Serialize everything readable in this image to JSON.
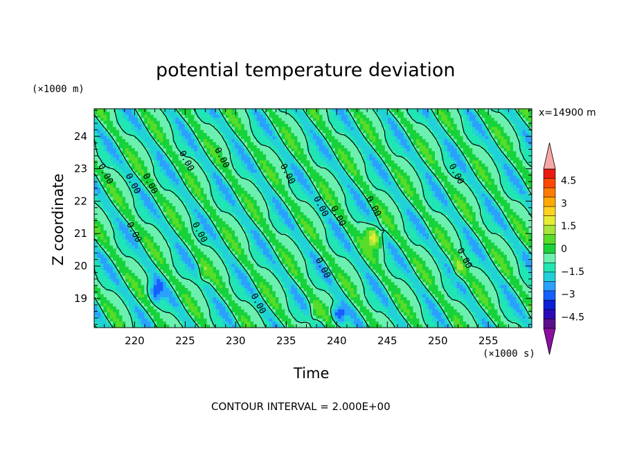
{
  "chart_data": {
    "type": "heatmap",
    "title": "potential temperature deviation",
    "xlabel": "Time",
    "ylabel": "Z coordinate",
    "x_unit": "(×1000 s)",
    "y_unit": "(×1000 m)",
    "location_label": "x=14900 m",
    "footer": "CONTOUR INTERVAL = 2.000E+00",
    "xlim": [
      216,
      259.3
    ],
    "ylim": [
      18.1,
      24.85
    ],
    "x_ticks": [
      220,
      225,
      230,
      235,
      240,
      245,
      250,
      255
    ],
    "y_ticks": [
      19,
      20,
      21,
      22,
      23,
      24
    ],
    "colorbar": {
      "range": [
        -5.25,
        5.25
      ],
      "step": 0.75,
      "tick_labels": [
        "4.5",
        "3",
        "1.5",
        "0",
        "−1.5",
        "−3",
        "−4.5"
      ],
      "tick_values": [
        4.5,
        3,
        1.5,
        0,
        -1.5,
        -3,
        -4.5
      ],
      "colors": [
        "#5b0f8a",
        "#2a0ab8",
        "#0a1fd6",
        "#1560ff",
        "#2ba0ff",
        "#21d0d8",
        "#21e6b4",
        "#6cf0b0",
        "#17d23a",
        "#57dc28",
        "#a6e63a",
        "#e6ec34",
        "#ffd21e",
        "#ffaa00",
        "#ff7b00",
        "#ff4800",
        "#e81a12"
      ],
      "over_color": "#f7a8a6",
      "under_color": "#8a0fa0"
    },
    "contour_label": "0.00",
    "contour_interval": 2.0,
    "contour_levels": [
      0
    ]
  }
}
